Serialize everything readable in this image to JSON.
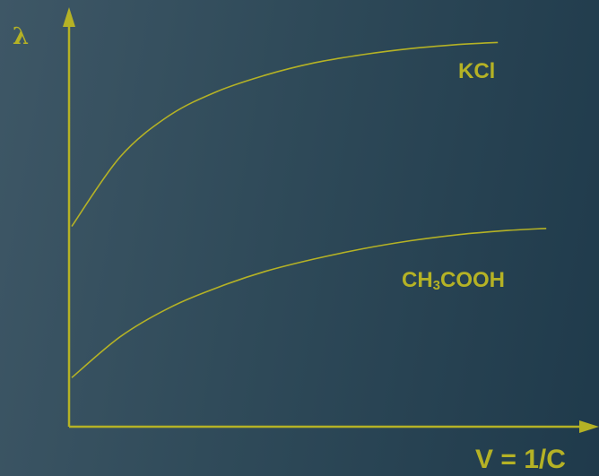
{
  "chart_data": {
    "type": "line",
    "ylabel": "λ",
    "xlabel": "V = 1/C",
    "line_color": "#b5b225",
    "background_colors": [
      "#3e5766",
      "#1f3a4b"
    ],
    "grid": false,
    "xlim": [
      0,
      100
    ],
    "ylim": [
      0,
      100
    ],
    "series": [
      {
        "name_parts": {
          "before": "KCl",
          "sub": "",
          "after": ""
        },
        "x": [
          0,
          10,
          20,
          30,
          40,
          50,
          60,
          70,
          80,
          88
        ],
        "y": [
          49,
          66,
          76,
          82,
          86,
          89,
          91,
          92.5,
          93.5,
          94
        ]
      },
      {
        "name_parts": {
          "before": "CH",
          "sub": "3",
          "after": "COOH"
        },
        "x": [
          0,
          10,
          20,
          30,
          40,
          50,
          60,
          70,
          80,
          90,
          98
        ],
        "y": [
          12,
          22,
          29,
          34,
          38,
          41,
          43.5,
          45.5,
          47,
          48,
          48.5
        ]
      }
    ]
  }
}
